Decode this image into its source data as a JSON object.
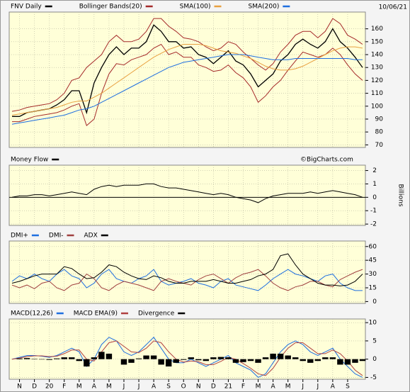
{
  "chart_data": [
    {
      "type": "line",
      "date_label": "10/06/21",
      "ylim": [
        68,
        173
      ],
      "yticks": [
        70,
        80,
        90,
        100,
        110,
        120,
        130,
        140,
        150,
        160
      ],
      "grid": true,
      "series": [
        {
          "name": "FNV Daily",
          "color": "#000000",
          "values": [
            92,
            92,
            95,
            96,
            97,
            98,
            101,
            105,
            112,
            112,
            95,
            118,
            130,
            140,
            146,
            140,
            145,
            145,
            150,
            163,
            158,
            150,
            150,
            145,
            146,
            140,
            138,
            133,
            138,
            143,
            135,
            132,
            125,
            115,
            120,
            125,
            135,
            140,
            148,
            152,
            148,
            145,
            150,
            160,
            150,
            145,
            138,
            130
          ]
        },
        {
          "name": "Bollinger Bands(20)",
          "color": "#a52a2a",
          "values": [
            96,
            97,
            99,
            100,
            101,
            102,
            105,
            110,
            120,
            122,
            130,
            135,
            140,
            150,
            155,
            150,
            150,
            152,
            158,
            168,
            168,
            162,
            158,
            153,
            152,
            150,
            146,
            143,
            145,
            150,
            148,
            142,
            137,
            132,
            128,
            133,
            142,
            148,
            155,
            158,
            158,
            153,
            158,
            168,
            164,
            155,
            152,
            148
          ],
          "lower": [
            88,
            88,
            90,
            92,
            93,
            94,
            95,
            97,
            100,
            102,
            85,
            90,
            110,
            125,
            133,
            132,
            136,
            138,
            140,
            145,
            148,
            140,
            142,
            138,
            138,
            132,
            130,
            127,
            128,
            132,
            126,
            122,
            115,
            103,
            108,
            115,
            120,
            128,
            135,
            142,
            140,
            138,
            140,
            145,
            140,
            132,
            125,
            120
          ]
        },
        {
          "name": "SMA(100)",
          "color": "#e8a040",
          "values": [
            93,
            94,
            95,
            96,
            97,
            98,
            99,
            101,
            103,
            104,
            104,
            107,
            110,
            114,
            118,
            122,
            126,
            130,
            134,
            138,
            141,
            144,
            146,
            148,
            148,
            148,
            147,
            145,
            143,
            142,
            141,
            139,
            137,
            134,
            131,
            129,
            128,
            128,
            129,
            131,
            134,
            137,
            140,
            143,
            145,
            146,
            146,
            145
          ]
        },
        {
          "name": "SMA(200)",
          "color": "#1f6fe0",
          "values": [
            86,
            87,
            88,
            89,
            90,
            91,
            92,
            93,
            95,
            97,
            98,
            100,
            103,
            106,
            109,
            112,
            115,
            118,
            121,
            124,
            127,
            130,
            132,
            134,
            135,
            136,
            137,
            138,
            139,
            140,
            140,
            140,
            139,
            138,
            137,
            136,
            136,
            136,
            137,
            137,
            137,
            137,
            137,
            137,
            137,
            137,
            136,
            136
          ]
        }
      ]
    },
    {
      "type": "line",
      "annotation": "©BigCharts.com",
      "ylabel": "Billions",
      "ylim": [
        -2.1,
        2.4
      ],
      "yticks": [
        -2,
        -1,
        0,
        1,
        2
      ],
      "baseline": 0,
      "grid": true,
      "series": [
        {
          "name": "Money Flow",
          "color": "#000000",
          "values": [
            0,
            0.1,
            0.1,
            0.2,
            0.2,
            0.1,
            0.2,
            0.3,
            0.4,
            0.3,
            0.2,
            0.6,
            0.8,
            0.9,
            0.8,
            0.9,
            0.9,
            0.9,
            1.0,
            1.0,
            0.8,
            0.7,
            0.7,
            0.6,
            0.5,
            0.4,
            0.3,
            0.2,
            0.3,
            0.2,
            0.0,
            -0.1,
            -0.2,
            -0.4,
            -0.1,
            0.1,
            0.2,
            0.3,
            0.3,
            0.3,
            0.4,
            0.3,
            0.4,
            0.5,
            0.4,
            0.3,
            0.2,
            0.0
          ]
        }
      ]
    },
    {
      "type": "line",
      "ylim": [
        -2,
        66
      ],
      "yticks": [
        0,
        15,
        30,
        45,
        60
      ],
      "grid": true,
      "series": [
        {
          "name": "DMI+",
          "color": "#1f6fe0",
          "values": [
            22,
            28,
            25,
            30,
            25,
            22,
            30,
            35,
            28,
            25,
            15,
            20,
            30,
            35,
            25,
            22,
            20,
            25,
            28,
            35,
            22,
            18,
            20,
            22,
            25,
            20,
            18,
            15,
            22,
            25,
            18,
            16,
            14,
            12,
            18,
            25,
            30,
            35,
            30,
            28,
            25,
            22,
            28,
            30,
            20,
            15,
            12,
            12
          ]
        },
        {
          "name": "DMI-",
          "color": "#a04040",
          "values": [
            18,
            15,
            18,
            14,
            20,
            22,
            15,
            12,
            18,
            20,
            30,
            25,
            15,
            12,
            18,
            22,
            20,
            18,
            15,
            12,
            22,
            25,
            22,
            20,
            18,
            24,
            28,
            30,
            25,
            20,
            26,
            30,
            32,
            35,
            28,
            20,
            15,
            12,
            16,
            18,
            22,
            22,
            18,
            16,
            24,
            28,
            32,
            35
          ]
        },
        {
          "name": "ADX",
          "color": "#000000",
          "values": [
            20,
            22,
            25,
            28,
            30,
            30,
            30,
            38,
            36,
            30,
            25,
            26,
            32,
            40,
            38,
            32,
            28,
            25,
            24,
            28,
            26,
            22,
            20,
            20,
            22,
            22,
            22,
            24,
            22,
            20,
            20,
            22,
            24,
            28,
            30,
            35,
            50,
            52,
            40,
            30,
            25,
            20,
            18,
            18,
            17,
            18,
            22,
            30
          ]
        }
      ]
    },
    {
      "type": "line",
      "ylim": [
        -5.5,
        11
      ],
      "yticks": [
        -5,
        0,
        5,
        10
      ],
      "grid": true,
      "categories": [
        null,
        "N",
        null,
        "D",
        null,
        "20",
        null,
        "F",
        null,
        "M",
        null,
        "A",
        null,
        "M",
        null,
        "J",
        null,
        "J",
        null,
        "A",
        null,
        "S",
        null,
        "O",
        null,
        "N",
        null,
        "D",
        null,
        "21",
        null,
        "F",
        null,
        "M",
        null,
        "A",
        null,
        "M",
        null,
        "J",
        null,
        "J",
        null,
        "A",
        null,
        "S",
        null,
        null
      ],
      "series": [
        {
          "name": "MACD(12,26)",
          "color": "#1f6fe0",
          "values": [
            0,
            0.5,
            1,
            1,
            0.8,
            0.5,
            1,
            2,
            3,
            2,
            -2,
            0,
            4,
            6,
            5,
            2,
            1,
            2,
            4,
            6,
            3,
            0,
            -1,
            -1,
            0,
            -1,
            -2,
            -1,
            0,
            1,
            -1,
            -2,
            -3,
            -5,
            -4,
            -1,
            2,
            4,
            5,
            4,
            2,
            1,
            2,
            3,
            0,
            -2,
            -4,
            -5
          ]
        },
        {
          "name": "MACD EMA(9)",
          "color": "#b04040",
          "values": [
            0,
            0.3,
            0.7,
            0.9,
            0.9,
            0.7,
            0.8,
            1.5,
            2.5,
            2.5,
            0,
            -0.5,
            2,
            4.5,
            5,
            3.5,
            2,
            1.8,
            3,
            5,
            4.5,
            2,
            0,
            -0.8,
            -0.5,
            -0.7,
            -1.5,
            -1.5,
            -0.6,
            0.5,
            0,
            -1.2,
            -2.5,
            -4,
            -4.5,
            -2.5,
            0.5,
            3,
            4.5,
            4.5,
            3,
            1.5,
            1.5,
            2.5,
            1.5,
            -0.5,
            -3,
            -4.5
          ]
        },
        {
          "name": "Divergence",
          "color": "#000000",
          "type": "bar",
          "values": [
            0,
            0.2,
            0.3,
            0.1,
            -0.1,
            -0.2,
            0.2,
            0.5,
            0.5,
            -0.5,
            -2,
            0.5,
            2,
            1.5,
            0,
            -1.5,
            -1,
            0.2,
            1,
            1,
            -1.5,
            -2,
            -1,
            -0.2,
            0.5,
            -0.3,
            -0.5,
            0.5,
            0.6,
            0.5,
            -1,
            -0.8,
            -0.5,
            -1,
            0.5,
            1.5,
            1.5,
            1,
            0.5,
            -0.5,
            -1,
            -0.5,
            0.5,
            0.5,
            -1.5,
            -1.5,
            -1,
            -0.5
          ]
        }
      ]
    }
  ]
}
